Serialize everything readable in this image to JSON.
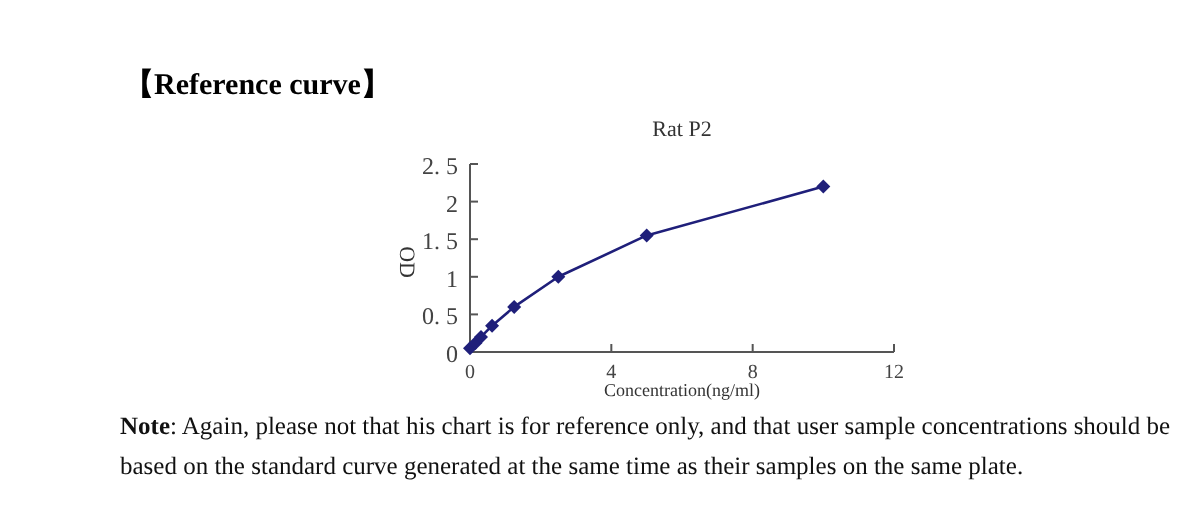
{
  "chart_data": {
    "type": "line",
    "title": "Rat P2",
    "xlabel": "Concentration(ng/ml)",
    "ylabel": "OD",
    "annotations": [
      "【Reference curve】",
      "**Note**: Again, please not that his chart is for reference only, and that user sample concentrations should be based on the standard curve generated at the same time as their samples on the same plate."
    ],
    "x": [
      0,
      0.156,
      0.312,
      0.625,
      1.25,
      2.5,
      5,
      10
    ],
    "series": [
      {
        "color": "#1f1f7a",
        "values": [
          0.05,
          0.12,
          0.2,
          0.35,
          0.6,
          1.0,
          1.55,
          2.2
        ]
      }
    ],
    "xlim": [
      0,
      12
    ],
    "xticks": [
      0,
      4,
      8,
      12
    ],
    "ylim": [
      0,
      2.5
    ],
    "yticks": [
      0,
      {
        "value": 0.5,
        "label": "0. 5"
      },
      1,
      {
        "value": 1.5,
        "label": "1. 5"
      },
      2,
      {
        "value": 2.5,
        "label": "2. 5"
      }
    ],
    "marker": "diamond",
    "line_style": "solid"
  }
}
